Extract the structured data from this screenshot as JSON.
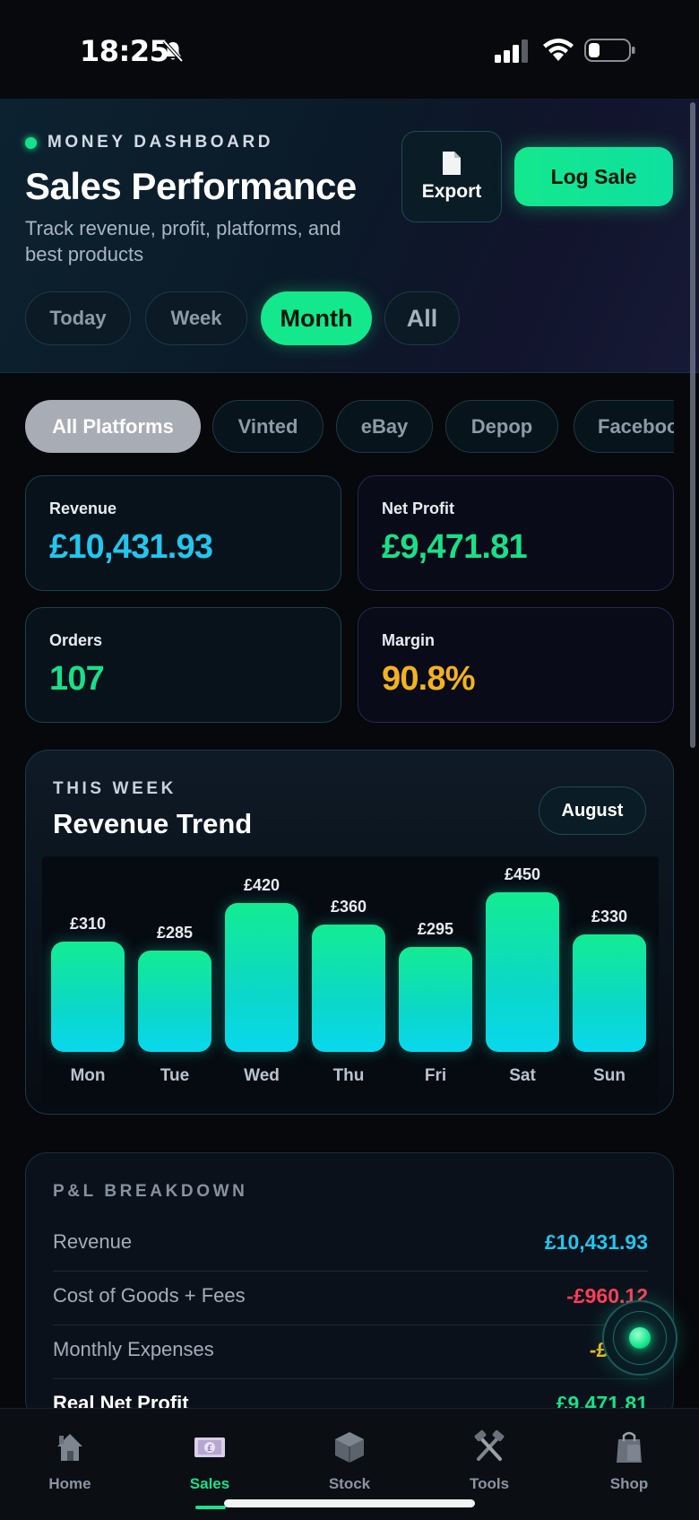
{
  "status_bar": {
    "time": "18:25"
  },
  "header": {
    "kicker": "MONEY DASHBOARD",
    "title": "Sales Performance",
    "subtitle": "Track revenue, profit, platforms, and best products",
    "export_label": "Export",
    "log_sale_label": "Log Sale",
    "periods": [
      {
        "label": "Today",
        "active": false
      },
      {
        "label": "Week",
        "active": false
      },
      {
        "label": "Month",
        "active": true
      },
      {
        "label": "All",
        "active": false
      }
    ]
  },
  "platforms": [
    {
      "label": "All Platforms",
      "active": true
    },
    {
      "label": "Vinted",
      "active": false
    },
    {
      "label": "eBay",
      "active": false
    },
    {
      "label": "Depop",
      "active": false
    },
    {
      "label": "Facebook",
      "active": false
    }
  ],
  "stats": [
    {
      "label": "Revenue",
      "value": "£10,431.93",
      "color": "#22c6ee"
    },
    {
      "label": "Net Profit",
      "value": "£9,471.81",
      "color": "#18e089"
    },
    {
      "label": "Orders",
      "value": "107",
      "color": "#18e089"
    },
    {
      "label": "Margin",
      "value": "90.8%",
      "color": "#f3b21f"
    }
  ],
  "chart": {
    "kicker": "THIS WEEK",
    "title": "Revenue Trend",
    "month_label": "August"
  },
  "chart_data": {
    "type": "bar",
    "title": "Revenue Trend",
    "categories": [
      "Mon",
      "Tue",
      "Wed",
      "Thu",
      "Fri",
      "Sat",
      "Sun"
    ],
    "values": [
      310,
      285,
      420,
      360,
      295,
      450,
      330
    ],
    "value_labels": [
      "£310",
      "£285",
      "£420",
      "£360",
      "£295",
      "£450",
      "£330"
    ],
    "xlabel": "",
    "ylabel": "",
    "ylim": [
      0,
      450
    ],
    "grid": false
  },
  "pl": {
    "kicker": "P&L BREAKDOWN",
    "rows": [
      {
        "label": "Revenue",
        "value": "£10,431.93",
        "color": "#22c6ee"
      },
      {
        "label": "Cost of Goods + Fees",
        "value": "-£960.12",
        "color": "#ff3d5a"
      },
      {
        "label": "Monthly Expenses",
        "value": "-£0.00",
        "color": "#f3b21f"
      },
      {
        "label": "Real Net Profit",
        "value": "£9,471.81",
        "color": "#18e089"
      }
    ]
  },
  "tabs": [
    {
      "label": "Home",
      "icon": "house-icon",
      "active": false
    },
    {
      "label": "Sales",
      "icon": "money-icon",
      "active": true
    },
    {
      "label": "Stock",
      "icon": "package-icon",
      "active": false
    },
    {
      "label": "Tools",
      "icon": "tools-icon",
      "active": false
    },
    {
      "label": "Shop",
      "icon": "shopping-bags-icon",
      "active": false
    }
  ]
}
